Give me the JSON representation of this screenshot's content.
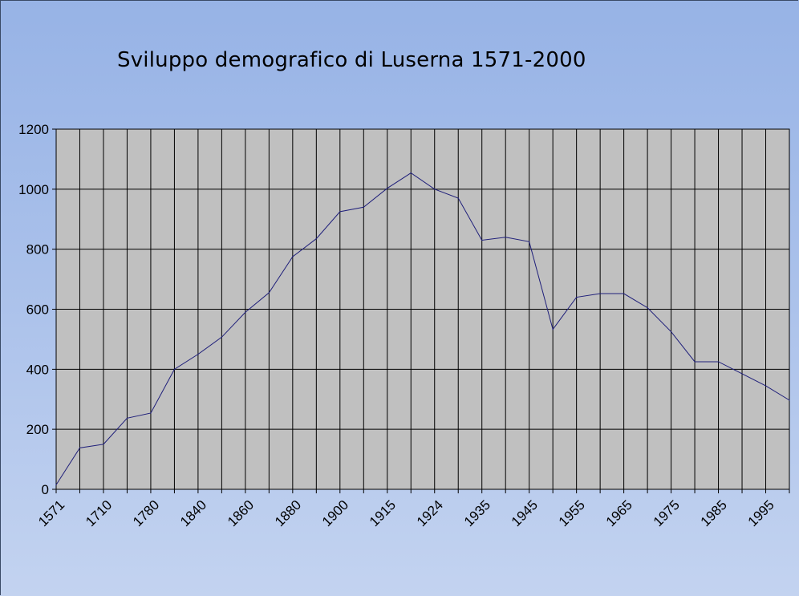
{
  "chart_data": {
    "type": "line",
    "title": "Sviluppo demografico di Luserna 1571-2000",
    "xlabel": "",
    "ylabel": "",
    "ylim": [
      0,
      1200
    ],
    "yticks": [
      "0",
      "200",
      "400",
      "600",
      "800",
      "1000",
      "1200"
    ],
    "grid": true,
    "legend": "none",
    "x_labels": [
      "1571",
      "",
      "1710",
      "",
      "1780",
      "",
      "1840",
      "",
      "1860",
      "",
      "1880",
      "",
      "1900",
      "",
      "1915",
      "",
      "1924",
      "",
      "1935",
      "",
      "1945",
      "",
      "1955",
      "",
      "1965",
      "",
      "1975",
      "",
      "1985",
      "",
      "1995",
      ""
    ],
    "series": [
      {
        "values": [
          15,
          138,
          150,
          237,
          254,
          400,
          450,
          507,
          590,
          655,
          775,
          835,
          925,
          940,
          1003,
          1054,
          1000,
          970,
          830,
          840,
          825,
          533,
          640,
          652,
          652,
          605,
          525,
          425,
          425,
          385,
          345,
          297
        ]
      }
    ],
    "colors": {
      "line": "#1f1f7a",
      "plot_background": "#c0c0c0",
      "gridline": "#000000",
      "background_top": "#97b3e6",
      "background_bottom": "#c3d3f0"
    }
  }
}
